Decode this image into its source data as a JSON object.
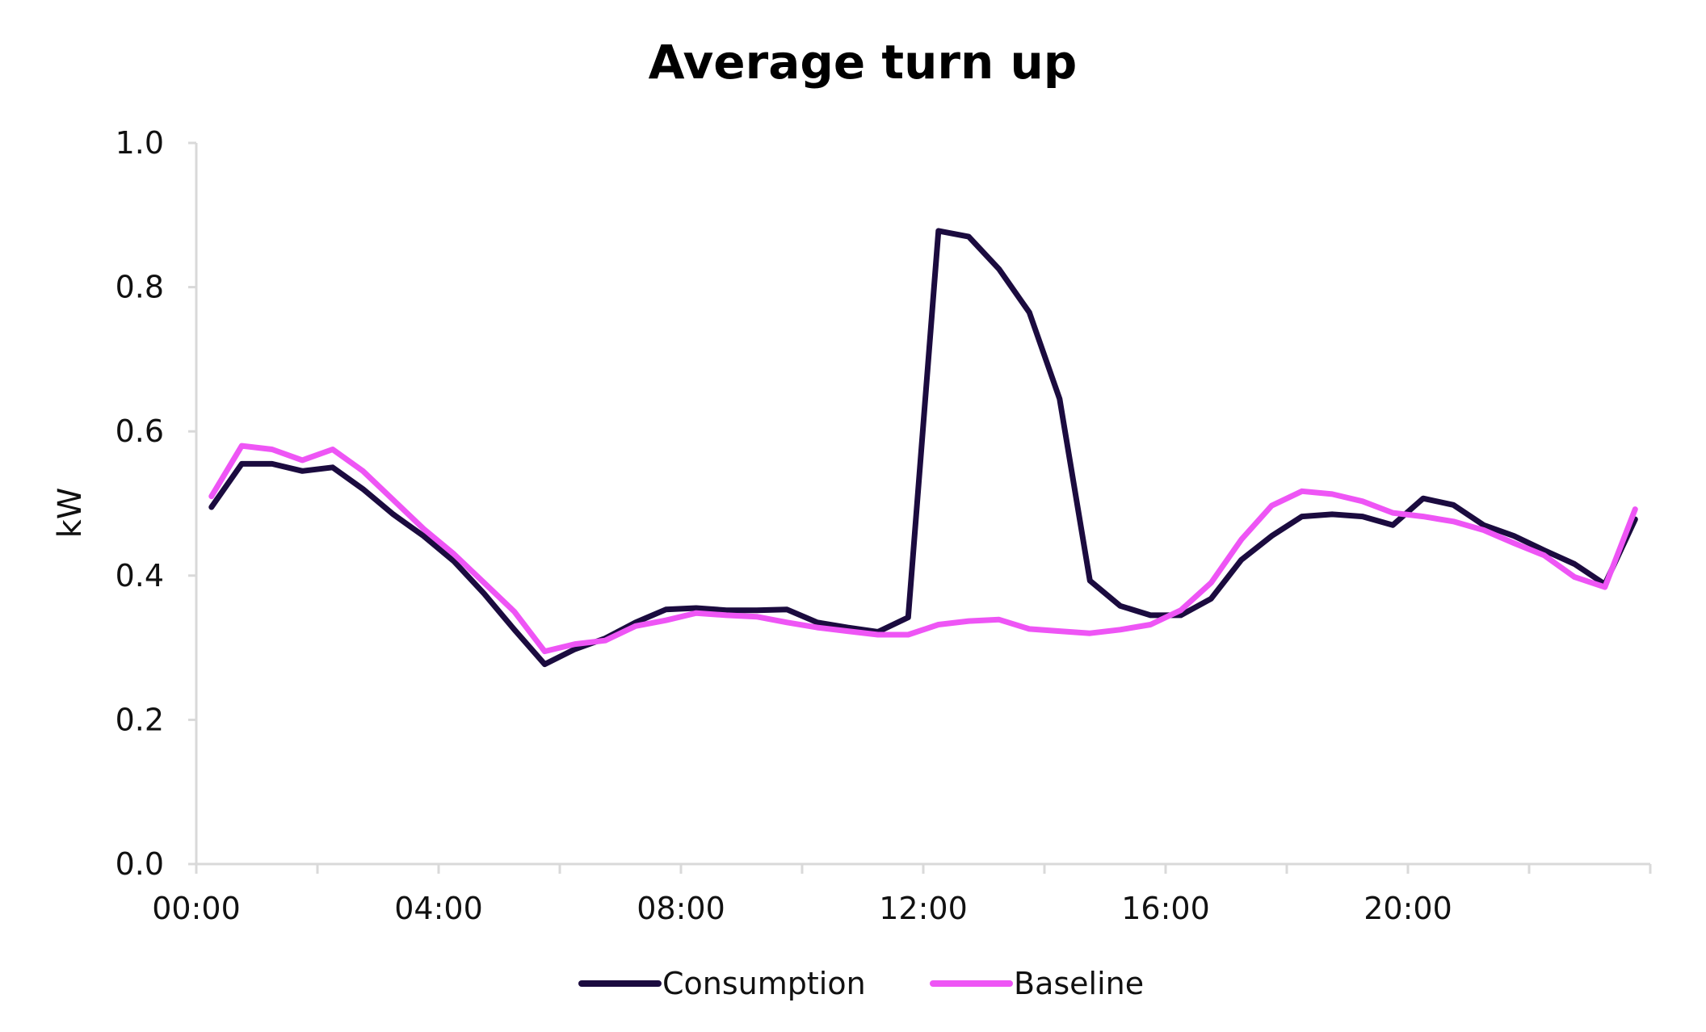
{
  "chart_data": {
    "type": "line",
    "title": "Average turn up",
    "xlabel": "",
    "ylabel": "kW",
    "ylim": [
      0,
      1.0
    ],
    "yticks": [
      "0.0",
      "0.2",
      "0.4",
      "0.6",
      "0.8",
      "1.0"
    ],
    "xlim": [
      "00:00",
      "24:00"
    ],
    "xtick_labels": [
      "00:00",
      "04:00",
      "08:00",
      "12:00",
      "16:00",
      "20:00"
    ],
    "x": [
      "00:15",
      "00:45",
      "01:15",
      "01:45",
      "02:15",
      "02:45",
      "03:15",
      "03:45",
      "04:15",
      "04:45",
      "05:15",
      "05:45",
      "06:15",
      "06:45",
      "07:15",
      "07:45",
      "08:15",
      "08:45",
      "09:15",
      "09:45",
      "10:15",
      "10:45",
      "11:15",
      "11:45",
      "12:15",
      "12:45",
      "13:15",
      "13:45",
      "14:15",
      "14:45",
      "15:15",
      "15:45",
      "16:15",
      "16:45",
      "17:15",
      "17:45",
      "18:15",
      "18:45",
      "19:15",
      "19:45",
      "20:15",
      "20:45",
      "21:15",
      "21:45",
      "22:15",
      "22:45",
      "23:15",
      "23:45"
    ],
    "series": [
      {
        "name": "Consumption",
        "color": "#1b0b3f",
        "values": [
          0.495,
          0.555,
          0.555,
          0.545,
          0.55,
          0.52,
          0.485,
          0.455,
          0.42,
          0.375,
          0.325,
          0.277,
          0.298,
          0.313,
          0.335,
          0.353,
          0.355,
          0.352,
          0.352,
          0.353,
          0.335,
          0.328,
          0.322,
          0.342,
          0.878,
          0.87,
          0.825,
          0.765,
          0.645,
          0.393,
          0.358,
          0.345,
          0.345,
          0.368,
          0.422,
          0.455,
          0.482,
          0.485,
          0.482,
          0.47,
          0.507,
          0.498,
          0.47,
          0.455,
          0.435,
          0.416,
          0.388,
          0.478
        ]
      },
      {
        "name": "Baseline",
        "color": "#ee55f5",
        "values": [
          0.51,
          0.58,
          0.575,
          0.56,
          0.575,
          0.545,
          0.505,
          0.465,
          0.43,
          0.39,
          0.35,
          0.295,
          0.305,
          0.31,
          0.33,
          0.338,
          0.348,
          0.345,
          0.343,
          0.335,
          0.328,
          0.323,
          0.318,
          0.318,
          0.332,
          0.337,
          0.339,
          0.326,
          0.323,
          0.32,
          0.325,
          0.332,
          0.352,
          0.39,
          0.45,
          0.497,
          0.517,
          0.513,
          0.503,
          0.487,
          0.482,
          0.475,
          0.463,
          0.445,
          0.428,
          0.398,
          0.384,
          0.492
        ]
      }
    ],
    "grid": false,
    "legend_position": "bottom"
  }
}
